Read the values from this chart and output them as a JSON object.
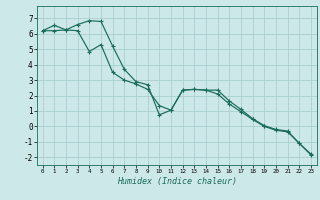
{
  "xlabel": "Humidex (Indice chaleur)",
  "bg_color": "#cce8e8",
  "grid_color": "#aacece",
  "line_color": "#1a6b5a",
  "xlim": [
    -0.5,
    23.5
  ],
  "ylim": [
    -2.5,
    7.8
  ],
  "xticks": [
    0,
    1,
    2,
    3,
    4,
    5,
    6,
    7,
    8,
    9,
    10,
    11,
    12,
    13,
    14,
    15,
    16,
    17,
    18,
    19,
    20,
    21,
    22,
    23
  ],
  "yticks": [
    -2,
    -1,
    0,
    1,
    2,
    3,
    4,
    5,
    6,
    7
  ],
  "line1_x": [
    0,
    1,
    2,
    3,
    4,
    5,
    6,
    7,
    8,
    9,
    10,
    11,
    12,
    13,
    14,
    15,
    16,
    17,
    18,
    19,
    20,
    21,
    22,
    23
  ],
  "line1_y": [
    6.2,
    6.55,
    6.25,
    6.2,
    4.85,
    5.3,
    3.5,
    3.0,
    2.75,
    2.4,
    1.35,
    1.05,
    2.35,
    2.4,
    2.35,
    2.35,
    1.65,
    1.1,
    0.5,
    0.05,
    -0.2,
    -0.3,
    -1.1,
    -1.8
  ],
  "line2_x": [
    0,
    1,
    2,
    3,
    4,
    5,
    6,
    7,
    8,
    9,
    10,
    11,
    12,
    13,
    14,
    15,
    16,
    17,
    18,
    19,
    20,
    21,
    22,
    23
  ],
  "line2_y": [
    6.2,
    6.2,
    6.25,
    6.6,
    6.85,
    6.8,
    5.2,
    3.7,
    2.9,
    2.7,
    0.75,
    1.05,
    2.35,
    2.4,
    2.35,
    2.1,
    1.45,
    0.95,
    0.45,
    0.0,
    -0.25,
    -0.35,
    -1.1,
    -1.85
  ]
}
